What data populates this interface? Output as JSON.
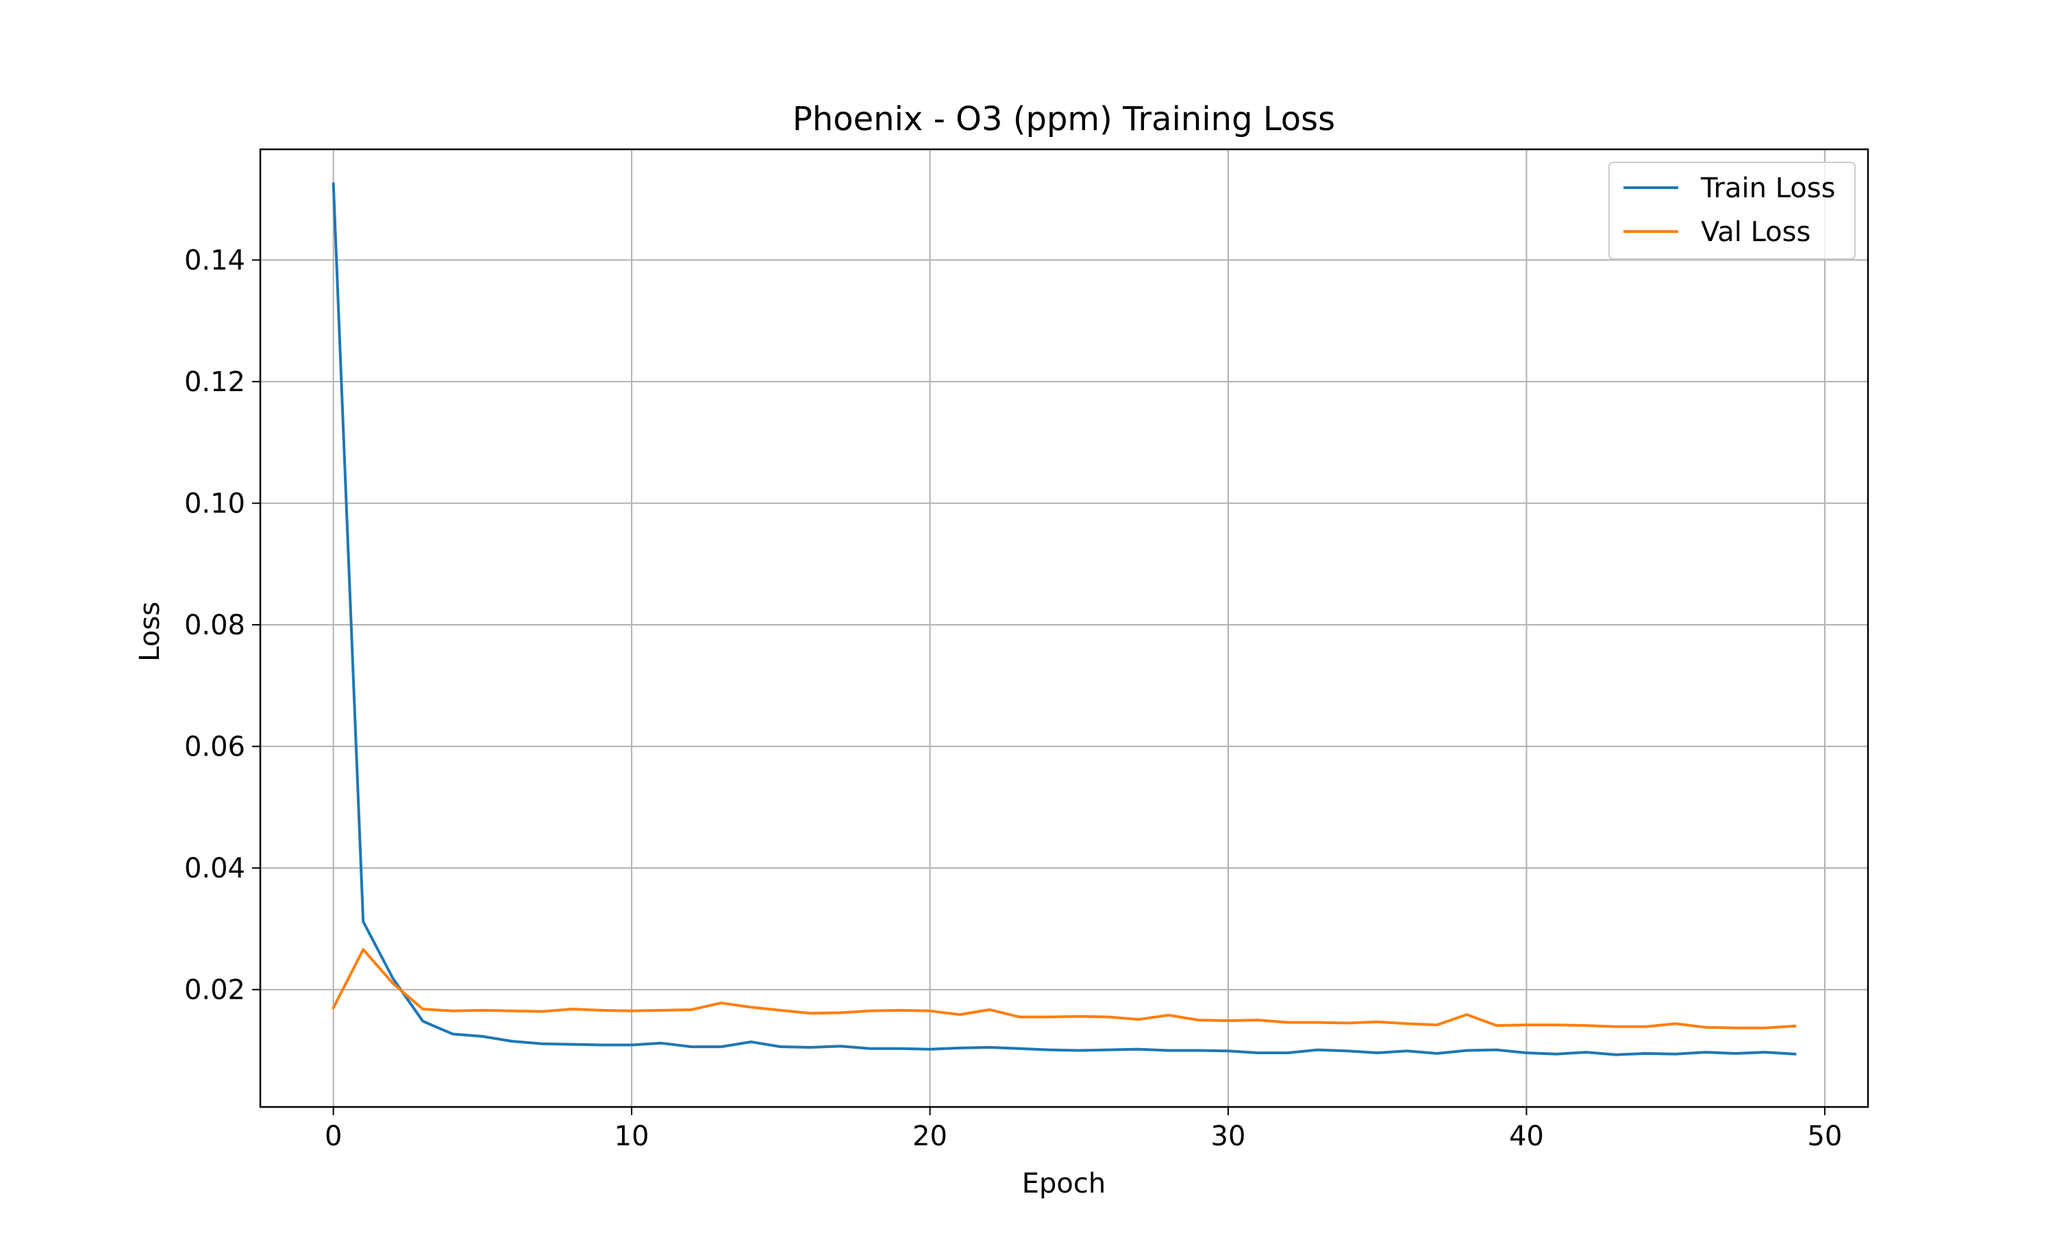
{
  "chart_data": {
    "type": "line",
    "title": "Phoenix - O3 (ppm) Training Loss",
    "xlabel": "Epoch",
    "ylabel": "Loss",
    "xlim": [
      -2.45,
      51.45
    ],
    "ylim": [
      0.0007,
      0.1582
    ],
    "xticks": [
      0,
      10,
      20,
      30,
      40,
      50
    ],
    "yticks": [
      0.02,
      0.04,
      0.06,
      0.08,
      0.1,
      0.12,
      0.14
    ],
    "xtick_labels": [
      "0",
      "10",
      "20",
      "30",
      "40",
      "50"
    ],
    "ytick_labels": [
      "0.02",
      "0.04",
      "0.06",
      "0.08",
      "0.10",
      "0.12",
      "0.14"
    ],
    "grid": true,
    "legend_position": "top-right",
    "x": [
      0,
      1,
      2,
      3,
      4,
      5,
      6,
      7,
      8,
      9,
      10,
      11,
      12,
      13,
      14,
      15,
      16,
      17,
      18,
      19,
      20,
      21,
      22,
      23,
      24,
      25,
      26,
      27,
      28,
      29,
      30,
      31,
      32,
      33,
      34,
      35,
      36,
      37,
      38,
      39,
      40,
      41,
      42,
      43,
      44,
      45,
      46,
      47,
      48,
      49
    ],
    "series": [
      {
        "name": "Train Loss",
        "color": "#1f77b4",
        "values": [
          0.1525,
          0.0312,
          0.0218,
          0.0148,
          0.0127,
          0.0123,
          0.0115,
          0.0111,
          0.011,
          0.0109,
          0.0109,
          0.0112,
          0.0106,
          0.0106,
          0.0114,
          0.0106,
          0.0105,
          0.0107,
          0.0103,
          0.0103,
          0.0102,
          0.0104,
          0.0105,
          0.0103,
          0.0101,
          0.01,
          0.0101,
          0.0102,
          0.01,
          0.01,
          0.0099,
          0.0096,
          0.0096,
          0.0101,
          0.0099,
          0.0096,
          0.0099,
          0.0095,
          0.01,
          0.0101,
          0.0096,
          0.0094,
          0.0097,
          0.0093,
          0.0095,
          0.0094,
          0.0097,
          0.0095,
          0.0097,
          0.0094
        ]
      },
      {
        "name": "Val Loss",
        "color": "#ff7f0e",
        "values": [
          0.017,
          0.0266,
          0.021,
          0.0168,
          0.0165,
          0.0166,
          0.0165,
          0.0164,
          0.0168,
          0.0166,
          0.0165,
          0.0166,
          0.0167,
          0.0178,
          0.0171,
          0.0166,
          0.0161,
          0.0162,
          0.0165,
          0.0166,
          0.0165,
          0.0159,
          0.0167,
          0.0155,
          0.0155,
          0.0156,
          0.0155,
          0.0151,
          0.0158,
          0.015,
          0.0149,
          0.015,
          0.0146,
          0.0146,
          0.0145,
          0.0147,
          0.0144,
          0.0142,
          0.0159,
          0.0141,
          0.0142,
          0.0142,
          0.0141,
          0.0139,
          0.0139,
          0.0144,
          0.0138,
          0.0137,
          0.0137,
          0.014
        ]
      }
    ]
  }
}
